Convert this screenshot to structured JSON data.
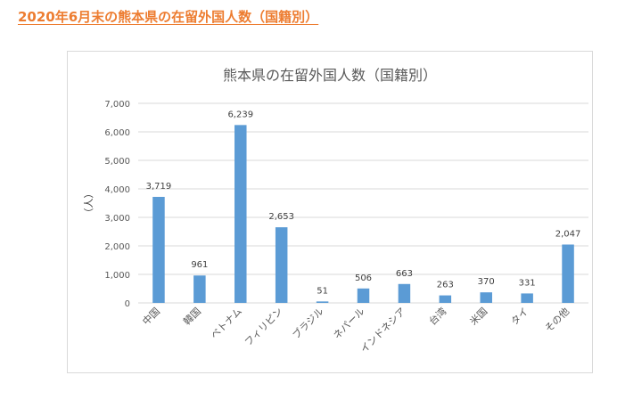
{
  "page": {
    "heading": "2020年6月末の熊本県の在留外国人数（国籍別）"
  },
  "chart_data": {
    "type": "bar",
    "title": "熊本県の在留外国人数（国籍別）",
    "xlabel": "",
    "ylabel": "（人）",
    "categories": [
      "中国",
      "韓国",
      "ベトナム",
      "フィリピン",
      "ブラジル",
      "ネパール",
      "インドネシア",
      "台湾",
      "米国",
      "タイ",
      "その他"
    ],
    "values": [
      3719,
      961,
      6239,
      2653,
      51,
      506,
      663,
      263,
      370,
      331,
      2047
    ],
    "data_labels": [
      "3,719",
      "961",
      "6,239",
      "2,653",
      "51",
      "506",
      "663",
      "263",
      "370",
      "331",
      "2,047"
    ],
    "y_ticks": [
      "0",
      "1,000",
      "2,000",
      "3,000",
      "4,000",
      "5,000",
      "6,000",
      "7,000"
    ],
    "ylim": [
      0,
      7000
    ],
    "grid": true,
    "legend": "none",
    "bar_color": "#5b9bd5"
  }
}
